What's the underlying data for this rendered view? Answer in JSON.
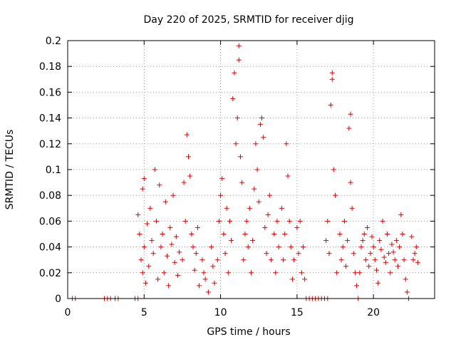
{
  "chart_data": {
    "type": "scatter",
    "title": "Day 220 of 2025, SRMTID for receiver djig",
    "xlabel": "GPS time / hours",
    "ylabel": "SRMTID / TECUs",
    "xlim": [
      0,
      24
    ],
    "ylim": [
      0,
      0.2
    ],
    "x_ticks": [
      0,
      5,
      10,
      15,
      20
    ],
    "y_ticks": [
      0,
      0.02,
      0.04,
      0.06,
      0.08,
      0.1,
      0.12,
      0.14,
      0.16,
      0.18,
      0.2
    ],
    "x_tick_labels": [
      "0",
      "5",
      "10",
      "15",
      "20"
    ],
    "y_tick_labels": [
      "0",
      "0.02",
      "0.04",
      "0.06",
      "0.08",
      "0.1",
      "0.12",
      "0.14",
      "0.16",
      "0.18",
      "0.2"
    ],
    "grid": true,
    "marker": "+",
    "color": "#e00000",
    "series": [
      {
        "points": [
          [
            0.3,
            0
          ],
          [
            0.5,
            0
          ],
          [
            2.4,
            0
          ],
          [
            2.6,
            0
          ],
          [
            2.8,
            0
          ],
          [
            3.1,
            0
          ],
          [
            3.3,
            0
          ],
          [
            4.4,
            0
          ],
          [
            4.6,
            0
          ],
          [
            4.6,
            0.065
          ],
          [
            4.7,
            0.05
          ],
          [
            4.8,
            0.03
          ],
          [
            4.9,
            0.02
          ],
          [
            4.9,
            0.085
          ],
          [
            5.0,
            0.093
          ],
          [
            5.0,
            0.04
          ],
          [
            5.1,
            0.012
          ],
          [
            5.2,
            0.058
          ],
          [
            5.3,
            0.025
          ],
          [
            5.4,
            0.07
          ],
          [
            5.5,
            0.045
          ],
          [
            5.6,
            0.035
          ],
          [
            5.7,
            0.1
          ],
          [
            5.8,
            0.06
          ],
          [
            5.9,
            0.015
          ],
          [
            6.0,
            0.088
          ],
          [
            6.1,
            0.04
          ],
          [
            6.2,
            0.05
          ],
          [
            6.3,
            0.02
          ],
          [
            6.4,
            0.075
          ],
          [
            6.5,
            0.033
          ],
          [
            6.6,
            0.01
          ],
          [
            6.7,
            0.055
          ],
          [
            6.8,
            0.042
          ],
          [
            6.9,
            0.08
          ],
          [
            7.0,
            0.028
          ],
          [
            7.1,
            0.048
          ],
          [
            7.2,
            0.018
          ],
          [
            7.3,
            0.036
          ],
          [
            7.5,
            0.03
          ],
          [
            7.6,
            0.09
          ],
          [
            7.7,
            0.06
          ],
          [
            7.8,
            0.127
          ],
          [
            7.9,
            0.11
          ],
          [
            8.0,
            0.095
          ],
          [
            8.1,
            0.05
          ],
          [
            8.2,
            0.04
          ],
          [
            8.3,
            0.022
          ],
          [
            8.4,
            0.035
          ],
          [
            8.5,
            0.055
          ],
          [
            8.6,
            0.01
          ],
          [
            8.8,
            0.03
          ],
          [
            8.9,
            0.02
          ],
          [
            9.0,
            0.015
          ],
          [
            9.2,
            0.005
          ],
          [
            9.4,
            0.04
          ],
          [
            9.5,
            0.025
          ],
          [
            9.6,
            0.012
          ],
          [
            9.8,
            0.03
          ],
          [
            9.9,
            0.06
          ],
          [
            10.0,
            0.08
          ],
          [
            10.1,
            0.093
          ],
          [
            10.2,
            0.05
          ],
          [
            10.3,
            0.035
          ],
          [
            10.4,
            0.07
          ],
          [
            10.5,
            0.02
          ],
          [
            10.6,
            0.06
          ],
          [
            10.7,
            0.045
          ],
          [
            10.8,
            0.155
          ],
          [
            10.9,
            0.175
          ],
          [
            11.0,
            0.12
          ],
          [
            11.1,
            0.14
          ],
          [
            11.2,
            0.196
          ],
          [
            11.2,
            0.185
          ],
          [
            11.3,
            0.11
          ],
          [
            11.4,
            0.09
          ],
          [
            11.5,
            0.03
          ],
          [
            11.6,
            0.05
          ],
          [
            11.7,
            0.06
          ],
          [
            11.8,
            0.04
          ],
          [
            11.9,
            0.07
          ],
          [
            12.0,
            0.02
          ],
          [
            12.1,
            0.045
          ],
          [
            12.2,
            0.085
          ],
          [
            12.3,
            0.12
          ],
          [
            12.4,
            0.1
          ],
          [
            12.5,
            0.075
          ],
          [
            12.6,
            0.135
          ],
          [
            12.7,
            0.14
          ],
          [
            12.8,
            0.125
          ],
          [
            12.9,
            0.055
          ],
          [
            13.0,
            0.035
          ],
          [
            13.1,
            0.065
          ],
          [
            13.2,
            0.08
          ],
          [
            13.3,
            0.03
          ],
          [
            13.5,
            0.05
          ],
          [
            13.6,
            0.02
          ],
          [
            13.7,
            0.06
          ],
          [
            13.8,
            0.04
          ],
          [
            14.0,
            0.07
          ],
          [
            14.1,
            0.03
          ],
          [
            14.2,
            0.05
          ],
          [
            14.3,
            0.12
          ],
          [
            14.4,
            0.095
          ],
          [
            14.5,
            0.06
          ],
          [
            14.6,
            0.04
          ],
          [
            14.7,
            0.015
          ],
          [
            14.8,
            0.03
          ],
          [
            15.0,
            0.055
          ],
          [
            15.1,
            0.035
          ],
          [
            15.2,
            0.06
          ],
          [
            15.3,
            0.02
          ],
          [
            15.4,
            0.04
          ],
          [
            15.5,
            0.015
          ],
          [
            15.6,
            0
          ],
          [
            15.8,
            0
          ],
          [
            16.0,
            0
          ],
          [
            16.2,
            0
          ],
          [
            16.4,
            0
          ],
          [
            16.6,
            0
          ],
          [
            16.8,
            0
          ],
          [
            17.0,
            0
          ],
          [
            16.9,
            0.045
          ],
          [
            17.0,
            0.06
          ],
          [
            17.1,
            0.035
          ],
          [
            17.2,
            0.15
          ],
          [
            17.3,
            0.175
          ],
          [
            17.3,
            0.17
          ],
          [
            17.4,
            0.1
          ],
          [
            17.5,
            0.08
          ],
          [
            17.6,
            0.02
          ],
          [
            17.8,
            0.05
          ],
          [
            17.9,
            0.03
          ],
          [
            18.0,
            0.04
          ],
          [
            18.1,
            0.06
          ],
          [
            18.2,
            0.025
          ],
          [
            18.3,
            0.045
          ],
          [
            18.4,
            0.132
          ],
          [
            18.5,
            0.143
          ],
          [
            18.5,
            0.09
          ],
          [
            18.6,
            0.07
          ],
          [
            18.7,
            0.035
          ],
          [
            18.8,
            0.02
          ],
          [
            18.9,
            0.01
          ],
          [
            19.0,
            0.0
          ],
          [
            19.1,
            0.02
          ],
          [
            19.2,
            0.04
          ],
          [
            19.3,
            0.045
          ],
          [
            19.4,
            0.05
          ],
          [
            19.5,
            0.03
          ],
          [
            19.6,
            0.055
          ],
          [
            19.7,
            0.025
          ],
          [
            19.8,
            0.035
          ],
          [
            19.9,
            0.048
          ],
          [
            20.0,
            0.04
          ],
          [
            20.1,
            0.03
          ],
          [
            20.2,
            0.022
          ],
          [
            20.3,
            0.012
          ],
          [
            20.4,
            0.045
          ],
          [
            20.5,
            0.038
          ],
          [
            20.6,
            0.06
          ],
          [
            20.7,
            0.032
          ],
          [
            20.8,
            0.028
          ],
          [
            20.9,
            0.05
          ],
          [
            21.0,
            0.035
          ],
          [
            21.1,
            0.02
          ],
          [
            21.2,
            0.042
          ],
          [
            21.3,
            0.036
          ],
          [
            21.4,
            0.03
          ],
          [
            21.5,
            0.045
          ],
          [
            21.6,
            0.025
          ],
          [
            21.7,
            0.04
          ],
          [
            21.8,
            0.065
          ],
          [
            21.9,
            0.05
          ],
          [
            22.0,
            0.03
          ],
          [
            22.1,
            0.015
          ],
          [
            22.2,
            0.005
          ],
          [
            22.3,
            0
          ],
          [
            22.5,
            0.048
          ],
          [
            22.6,
            0.03
          ],
          [
            22.7,
            0.035
          ],
          [
            22.8,
            0.04
          ],
          [
            22.9,
            0.028
          ]
        ]
      }
    ]
  }
}
